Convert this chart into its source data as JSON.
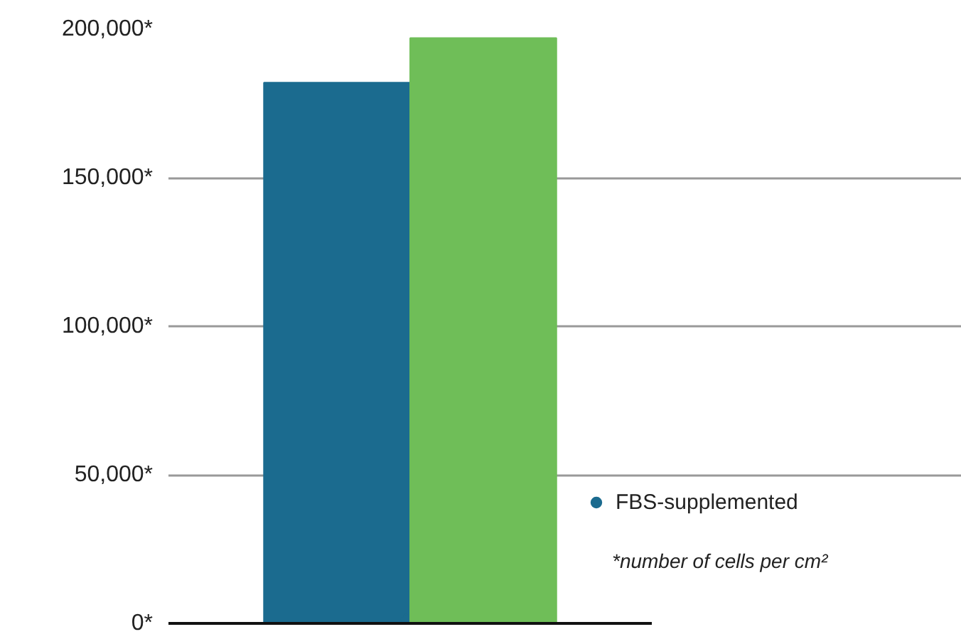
{
  "chart_data": {
    "type": "bar",
    "categories": [
      null
    ],
    "series": [
      {
        "name": "FBS-supplemented",
        "color": "#1b6b8f",
        "values": [
          182000
        ]
      },
      {
        "color": "#6fbe58",
        "values": [
          197000
        ]
      }
    ],
    "ylim": [
      0,
      200000
    ],
    "yticks": [
      {
        "value": 0,
        "label": "0*"
      },
      {
        "value": 50000,
        "label": "50,000*"
      },
      {
        "value": 100000,
        "label": "100,000*"
      },
      {
        "value": 150000,
        "label": "150,000*"
      },
      {
        "value": 200000,
        "label": "200,000*"
      }
    ],
    "grid": "y",
    "legend": "right",
    "marker": "circle",
    "annotations": [
      "*number of cells per cm²"
    ]
  }
}
